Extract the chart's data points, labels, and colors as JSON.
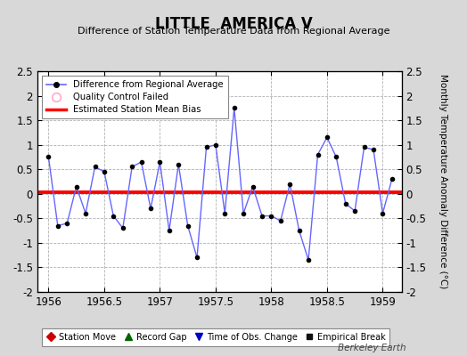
{
  "title": "LITTLE  AMERICA V",
  "subtitle": "Difference of Station Temperature Data from Regional Average",
  "ylabel": "Monthly Temperature Anomaly Difference (°C)",
  "xlabel_credit": "Berkeley Earth",
  "xlim": [
    1955.9,
    1959.17
  ],
  "ylim": [
    -2.0,
    2.5
  ],
  "yticks": [
    -2.0,
    -1.5,
    -1.0,
    -0.5,
    0.0,
    0.5,
    1.0,
    1.5,
    2.0,
    2.5
  ],
  "xticks": [
    1956.0,
    1956.5,
    1957.0,
    1957.5,
    1958.0,
    1958.5,
    1959.0
  ],
  "xtick_labels": [
    "1956",
    "1956.5",
    "1957",
    "1957.5",
    "1958",
    "1958.5",
    "1959"
  ],
  "ytick_labels": [
    "-2",
    "-1.5",
    "-1",
    "-0.5",
    "0",
    "0.5",
    "1",
    "1.5",
    "2",
    "2.5"
  ],
  "bias": 0.03,
  "line_color": "#6666ff",
  "marker_color": "#000000",
  "bias_color": "#ff0000",
  "bg_color": "#d8d8d8",
  "plot_bg_color": "#ffffff",
  "x_values": [
    1956.0,
    1956.083,
    1956.167,
    1956.25,
    1956.333,
    1956.417,
    1956.5,
    1956.583,
    1956.667,
    1956.75,
    1956.833,
    1956.917,
    1957.0,
    1957.083,
    1957.167,
    1957.25,
    1957.333,
    1957.417,
    1957.5,
    1957.583,
    1957.667,
    1957.75,
    1957.833,
    1957.917,
    1958.0,
    1958.083,
    1958.167,
    1958.25,
    1958.333,
    1958.417,
    1958.5,
    1958.583,
    1958.667,
    1958.75,
    1958.833,
    1958.917,
    1959.0,
    1959.083
  ],
  "y_values": [
    0.75,
    -0.65,
    -0.6,
    0.15,
    -0.4,
    0.55,
    0.45,
    -0.45,
    -0.7,
    0.55,
    0.65,
    -0.3,
    0.65,
    -0.75,
    0.6,
    -0.65,
    -1.3,
    0.95,
    1.0,
    -0.4,
    1.75,
    -0.4,
    0.15,
    -0.45,
    -0.45,
    -0.55,
    0.2,
    -0.75,
    -1.35,
    0.8,
    1.15,
    0.75,
    -0.2,
    -0.35,
    0.95,
    0.9,
    -0.4,
    0.3
  ]
}
